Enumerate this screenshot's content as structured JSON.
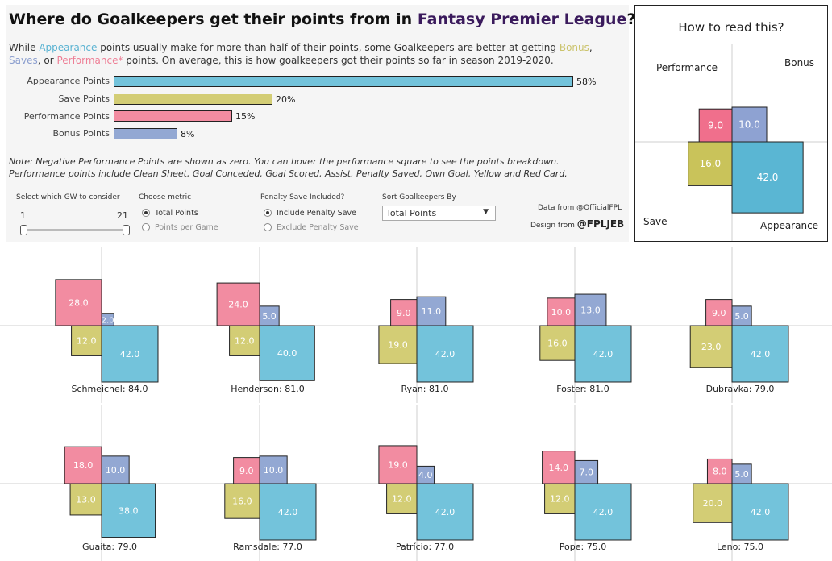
{
  "header": {
    "title_part1": "Where do Goalkeepers get their points from in ",
    "title_part2": "Fantasy Premier League",
    "title_part3": "?"
  },
  "intro": {
    "t1": "While ",
    "appearance": "Appearance",
    "t2": " points usually make for more than half of their points, some Goalkeepers are better at getting ",
    "bonus": "Bonus",
    "t3": ", ",
    "saves": "Saves",
    "t4": ", or ",
    "performance": "Performance*",
    "t5": " points. On average, this is how goalkeepers got their points so far in season 2019-2020."
  },
  "summary": [
    {
      "label": "Appearance Points",
      "value": 58,
      "display": "58%"
    },
    {
      "label": "Save Points",
      "value": 20,
      "display": "20%"
    },
    {
      "label": "Performance Points",
      "value": 15,
      "display": "15%"
    },
    {
      "label": "Bonus Points",
      "value": 8,
      "display": "8%"
    }
  ],
  "note": {
    "line1": "Note: Negative Performance Points are shown as zero. You can hover the performance square to see the points breakdown.",
    "line2": "Performance points include Clean Sheet, Goal Conceded, Goal Scored, Assist, Penalty Saved, Own Goal, Yellow and Red Card."
  },
  "controls": {
    "gw_title": "Select which GW to consider",
    "gw_min": "1",
    "gw_max": "21",
    "gw_range": [
      1,
      21
    ],
    "metric_title": "Choose metric",
    "metric_options": [
      "Total Points",
      "Points per Game"
    ],
    "penalty_title": "Penalty Save Included?",
    "penalty_options": [
      "Include Penalty Save",
      "Exclude Penalty Save"
    ],
    "sort_title": "Sort Goalkeepers By",
    "sort_value": "Total Points"
  },
  "credits": {
    "data_label": "Data from ",
    "data_source": "@OfficialFPL",
    "design_label": "Design from ",
    "design_source": "@FPLJEB"
  },
  "howto": {
    "title": "How to read this?",
    "performance_label": "Performance",
    "bonus_label": "Bonus",
    "save_label": "Save",
    "appearance_label": "Appearance",
    "example": {
      "performance": 9.0,
      "bonus": 10.0,
      "save": 16.0,
      "appearance": 42.0
    }
  },
  "colors": {
    "appearance": "#73c3db",
    "save": "#d3cd75",
    "performance": "#f28ca1",
    "bonus": "#93a8d3",
    "howto_appearance": "#5ab6d3",
    "howto_save": "#c9c35a",
    "howto_performance": "#f06f8c",
    "howto_bonus": "#8ea2d2"
  },
  "chart_data": {
    "type": "square quadrant",
    "unit": "points",
    "series_order": [
      "performance",
      "bonus",
      "save",
      "appearance"
    ],
    "keepers": [
      {
        "name": "Schmeichel",
        "total": 84.0,
        "performance": 28.0,
        "bonus": 2.0,
        "save": 12.0,
        "appearance": 42.0,
        "label": "Schmeichel: 84.0"
      },
      {
        "name": "Henderson",
        "total": 81.0,
        "performance": 24.0,
        "bonus": 5.0,
        "save": 12.0,
        "appearance": 40.0,
        "label": "Henderson: 81.0"
      },
      {
        "name": "Ryan",
        "total": 81.0,
        "performance": 9.0,
        "bonus": 11.0,
        "save": 19.0,
        "appearance": 42.0,
        "label": "Ryan: 81.0"
      },
      {
        "name": "Foster",
        "total": 81.0,
        "performance": 10.0,
        "bonus": 13.0,
        "save": 16.0,
        "appearance": 42.0,
        "label": "Foster: 81.0"
      },
      {
        "name": "Dubravka",
        "total": 79.0,
        "performance": 9.0,
        "bonus": 5.0,
        "save": 23.0,
        "appearance": 42.0,
        "label": "Dubravka: 79.0"
      },
      {
        "name": "Guaita",
        "total": 79.0,
        "performance": 18.0,
        "bonus": 10.0,
        "save": 13.0,
        "appearance": 38.0,
        "label": "Guaita: 79.0"
      },
      {
        "name": "Ramsdale",
        "total": 77.0,
        "performance": 9.0,
        "bonus": 10.0,
        "save": 16.0,
        "appearance": 42.0,
        "label": "Ramsdale: 77.0"
      },
      {
        "name": "Patrício",
        "total": 77.0,
        "performance": 19.0,
        "bonus": 4.0,
        "save": 12.0,
        "appearance": 42.0,
        "label": "Patrício: 77.0"
      },
      {
        "name": "Pope",
        "total": 75.0,
        "performance": 14.0,
        "bonus": 7.0,
        "save": 12.0,
        "appearance": 42.0,
        "label": "Pope: 75.0"
      },
      {
        "name": "Leno",
        "total": 75.0,
        "performance": 8.0,
        "bonus": 5.0,
        "save": 20.0,
        "appearance": 42.0,
        "label": "Leno: 75.0"
      }
    ]
  }
}
